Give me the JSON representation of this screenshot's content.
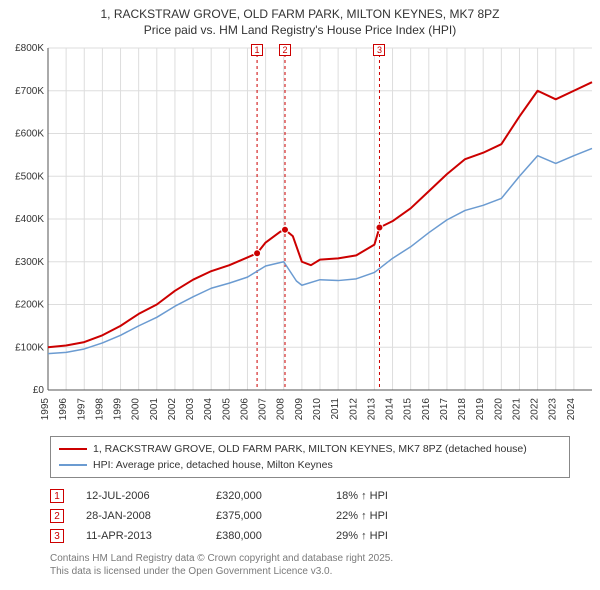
{
  "title_line1": "1, RACKSTRAW GROVE, OLD FARM PARK, MILTON KEYNES, MK7 8PZ",
  "title_line2": "Price paid vs. HM Land Registry's House Price Index (HPI)",
  "chart": {
    "type": "line",
    "background_color": "#ffffff",
    "grid_color": "#dddddd",
    "axis_color": "#555555",
    "text_color": "#333333",
    "x_years": [
      1995,
      1996,
      1997,
      1998,
      1999,
      2000,
      2001,
      2002,
      2003,
      2004,
      2005,
      2006,
      2007,
      2008,
      2009,
      2010,
      2011,
      2012,
      2013,
      2014,
      2015,
      2016,
      2017,
      2018,
      2019,
      2020,
      2021,
      2022,
      2023,
      2024
    ],
    "y_ticks": [
      0,
      100000,
      200000,
      300000,
      400000,
      500000,
      600000,
      700000,
      800000
    ],
    "y_tick_labels": [
      "£0",
      "£100K",
      "£200K",
      "£300K",
      "£400K",
      "£500K",
      "£600K",
      "£700K",
      "£800K"
    ],
    "xlim": [
      1995,
      2025
    ],
    "ylim": [
      0,
      800000
    ],
    "series": [
      {
        "name": "property",
        "color": "#cc0000",
        "width": 2,
        "data": [
          [
            1995,
            100000
          ],
          [
            1996,
            104000
          ],
          [
            1997,
            112000
          ],
          [
            1998,
            128000
          ],
          [
            1999,
            150000
          ],
          [
            2000,
            178000
          ],
          [
            2001,
            200000
          ],
          [
            2002,
            232000
          ],
          [
            2003,
            258000
          ],
          [
            2004,
            278000
          ],
          [
            2005,
            292000
          ],
          [
            2006,
            310000
          ],
          [
            2006.53,
            320000
          ],
          [
            2007,
            345000
          ],
          [
            2007.8,
            370000
          ],
          [
            2008.07,
            375000
          ],
          [
            2008.5,
            360000
          ],
          [
            2009,
            300000
          ],
          [
            2009.5,
            292000
          ],
          [
            2010,
            305000
          ],
          [
            2011,
            308000
          ],
          [
            2012,
            315000
          ],
          [
            2013,
            340000
          ],
          [
            2013.28,
            380000
          ],
          [
            2014,
            395000
          ],
          [
            2015,
            425000
          ],
          [
            2016,
            465000
          ],
          [
            2017,
            505000
          ],
          [
            2018,
            540000
          ],
          [
            2019,
            555000
          ],
          [
            2020,
            575000
          ],
          [
            2021,
            640000
          ],
          [
            2022,
            700000
          ],
          [
            2023,
            680000
          ],
          [
            2024,
            700000
          ],
          [
            2025,
            720000
          ]
        ]
      },
      {
        "name": "hpi",
        "color": "#6b9bd1",
        "width": 1.5,
        "data": [
          [
            1995,
            85000
          ],
          [
            1996,
            88000
          ],
          [
            1997,
            96000
          ],
          [
            1998,
            110000
          ],
          [
            1999,
            128000
          ],
          [
            2000,
            150000
          ],
          [
            2001,
            170000
          ],
          [
            2002,
            196000
          ],
          [
            2003,
            218000
          ],
          [
            2004,
            238000
          ],
          [
            2005,
            250000
          ],
          [
            2006,
            264000
          ],
          [
            2007,
            290000
          ],
          [
            2008,
            300000
          ],
          [
            2008.7,
            255000
          ],
          [
            2009,
            245000
          ],
          [
            2010,
            258000
          ],
          [
            2011,
            256000
          ],
          [
            2012,
            260000
          ],
          [
            2013,
            275000
          ],
          [
            2014,
            308000
          ],
          [
            2015,
            335000
          ],
          [
            2016,
            368000
          ],
          [
            2017,
            398000
          ],
          [
            2018,
            420000
          ],
          [
            2019,
            432000
          ],
          [
            2020,
            448000
          ],
          [
            2021,
            500000
          ],
          [
            2022,
            548000
          ],
          [
            2023,
            530000
          ],
          [
            2024,
            548000
          ],
          [
            2025,
            565000
          ]
        ]
      }
    ],
    "markers": [
      {
        "n": "1",
        "x": 2006.53,
        "y": 320000
      },
      {
        "n": "2",
        "x": 2008.07,
        "y": 375000
      },
      {
        "n": "3",
        "x": 2013.28,
        "y": 380000
      }
    ],
    "marker_line_color": "#cc0000",
    "marker_dot_color": "#cc0000",
    "label_fontsize": 10
  },
  "legend": {
    "line1_color": "#cc0000",
    "line1_label": "1, RACKSTRAW GROVE, OLD FARM PARK, MILTON KEYNES, MK7 8PZ (detached house)",
    "line2_color": "#6b9bd1",
    "line2_label": "HPI: Average price, detached house, Milton Keynes"
  },
  "sale_events": [
    {
      "n": "1",
      "date": "12-JUL-2006",
      "price": "£320,000",
      "hpi": "18% ↑ HPI"
    },
    {
      "n": "2",
      "date": "28-JAN-2008",
      "price": "£375,000",
      "hpi": "22% ↑ HPI"
    },
    {
      "n": "3",
      "date": "11-APR-2013",
      "price": "£380,000",
      "hpi": "29% ↑ HPI"
    }
  ],
  "footer_line1": "Contains HM Land Registry data © Crown copyright and database right 2025.",
  "footer_line2": "This data is licensed under the Open Government Licence v3.0."
}
